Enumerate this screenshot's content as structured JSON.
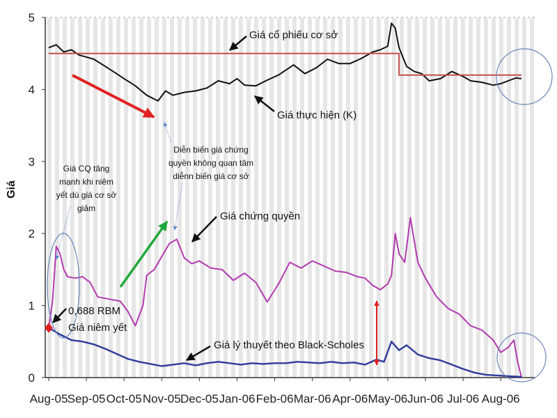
{
  "chart_data": {
    "type": "line",
    "ylabel": "Giá",
    "xlabel": "",
    "ylim": [
      0,
      5
    ],
    "yticks": [
      0,
      1,
      2,
      3,
      4,
      5
    ],
    "xlim": [
      0,
      12.6
    ],
    "categories": [
      "Aug-05",
      "Sep-05",
      "Oct-05",
      "Nov-05",
      "Dec-05",
      "Jan-06",
      "Feb-06",
      "Mar-06",
      "Apr-06",
      "May-06",
      "Jun-06",
      "Jul-06",
      "Aug-06"
    ],
    "colors": {
      "underlying": "#111111",
      "strike": "#c0504d",
      "warrant": "#b23ab0",
      "black_scholes": "#2e3a9a",
      "arrow_red": "#e02020",
      "arrow_green": "#22a83a",
      "arrow_blue": "#5b86c8",
      "bands": "#e6e6e6",
      "circle": "#6a84b8"
    },
    "series": [
      {
        "name": "Giá cổ phiếu cơ sở",
        "key": "underlying",
        "x": [
          0,
          0.2,
          0.4,
          0.6,
          0.8,
          1.0,
          1.2,
          1.5,
          1.8,
          2.0,
          2.3,
          2.6,
          2.9,
          3.1,
          3.3,
          3.6,
          3.9,
          4.2,
          4.5,
          4.8,
          5.0,
          5.2,
          5.5,
          5.8,
          6.1,
          6.5,
          6.8,
          7.1,
          7.4,
          7.7,
          8.0,
          8.3,
          8.6,
          8.8,
          9.0,
          9.1,
          9.2,
          9.3,
          9.5,
          9.7,
          9.9,
          10.1,
          10.4,
          10.7,
          11.0,
          11.2,
          11.5,
          11.8,
          12.0,
          12.2,
          12.4,
          12.55
        ],
        "values": [
          4.58,
          4.62,
          4.52,
          4.55,
          4.48,
          4.45,
          4.42,
          4.32,
          4.22,
          4.15,
          4.05,
          3.92,
          3.84,
          3.98,
          3.92,
          3.96,
          3.98,
          4.02,
          4.12,
          4.08,
          4.15,
          4.06,
          4.05,
          4.13,
          4.2,
          4.34,
          4.22,
          4.3,
          4.42,
          4.36,
          4.36,
          4.43,
          4.52,
          4.55,
          4.6,
          4.92,
          4.85,
          4.58,
          4.32,
          4.25,
          4.22,
          4.12,
          4.15,
          4.25,
          4.18,
          4.12,
          4.1,
          4.06,
          4.08,
          4.12,
          4.16,
          4.15
        ]
      },
      {
        "name": "Giá thực hiện (K)",
        "key": "strike",
        "x": [
          0,
          9.3,
          9.3,
          12.55
        ],
        "values": [
          4.5,
          4.5,
          4.2,
          4.2
        ]
      },
      {
        "name": "Giá chứng quyền",
        "key": "warrant",
        "x": [
          0,
          0.1,
          0.2,
          0.3,
          0.4,
          0.5,
          0.7,
          0.9,
          1.1,
          1.3,
          1.5,
          1.7,
          1.9,
          2.1,
          2.3,
          2.5,
          2.6,
          2.8,
          3.0,
          3.2,
          3.4,
          3.6,
          3.8,
          4.0,
          4.3,
          4.6,
          4.9,
          5.2,
          5.5,
          5.8,
          6.1,
          6.4,
          6.7,
          7.0,
          7.3,
          7.6,
          7.9,
          8.2,
          8.4,
          8.6,
          8.8,
          9.0,
          9.1,
          9.2,
          9.3,
          9.45,
          9.6,
          9.8,
          10.0,
          10.3,
          10.6,
          10.9,
          11.2,
          11.5,
          11.8,
          12.0,
          12.2,
          12.35,
          12.45,
          12.55
        ],
        "values": [
          0.69,
          1.05,
          1.82,
          1.72,
          1.5,
          1.4,
          1.38,
          1.4,
          1.32,
          1.12,
          1.1,
          1.08,
          1.06,
          0.92,
          0.72,
          1.0,
          1.42,
          1.5,
          1.68,
          1.86,
          1.92,
          1.66,
          1.58,
          1.62,
          1.52,
          1.5,
          1.35,
          1.45,
          1.32,
          1.05,
          1.3,
          1.6,
          1.52,
          1.62,
          1.55,
          1.48,
          1.46,
          1.4,
          1.38,
          1.28,
          1.22,
          1.3,
          1.42,
          2.0,
          1.72,
          1.6,
          2.22,
          1.6,
          1.38,
          1.12,
          0.96,
          0.88,
          0.72,
          0.66,
          0.52,
          0.35,
          0.42,
          0.52,
          0.22,
          0.0
        ]
      },
      {
        "name": "Giá lý thuyết theo Black-Scholes",
        "key": "black_scholes",
        "x": [
          0,
          0.3,
          0.6,
          0.9,
          1.2,
          1.5,
          1.8,
          2.1,
          2.4,
          2.7,
          3.0,
          3.3,
          3.6,
          3.9,
          4.2,
          4.5,
          4.8,
          5.1,
          5.4,
          5.7,
          6.0,
          6.3,
          6.6,
          6.9,
          7.2,
          7.5,
          7.8,
          8.1,
          8.4,
          8.7,
          8.9,
          9.1,
          9.3,
          9.5,
          9.8,
          10.1,
          10.4,
          10.7,
          11.0,
          11.3,
          11.6,
          11.9,
          12.2,
          12.55
        ],
        "values": [
          0.69,
          0.6,
          0.52,
          0.5,
          0.46,
          0.4,
          0.33,
          0.26,
          0.22,
          0.19,
          0.16,
          0.18,
          0.2,
          0.17,
          0.2,
          0.22,
          0.2,
          0.18,
          0.2,
          0.19,
          0.2,
          0.2,
          0.22,
          0.21,
          0.2,
          0.22,
          0.2,
          0.21,
          0.18,
          0.25,
          0.22,
          0.5,
          0.38,
          0.45,
          0.32,
          0.27,
          0.24,
          0.18,
          0.12,
          0.07,
          0.04,
          0.03,
          0.02,
          0.01
        ]
      }
    ],
    "annotations": {
      "underlying_label": "Giá cổ phiếu cơ sở",
      "strike_label": "Giá thực hiện (K)",
      "warrant_label": "Giá chứng quyền",
      "bs_label": "Giá lý thuyết theo Black-Scholes",
      "listing_value": "0,688 RBM",
      "listing_label": "Giá niêm yết",
      "note_left": [
        "Giá CQ tăng",
        "mạnh khi niêm",
        "yết dù giá cơ sở",
        "giảm"
      ],
      "note_mid": [
        "Diễn biến giá chứng",
        "quyền không quan tâm",
        "diễnn biến giá cơ sở"
      ]
    }
  }
}
